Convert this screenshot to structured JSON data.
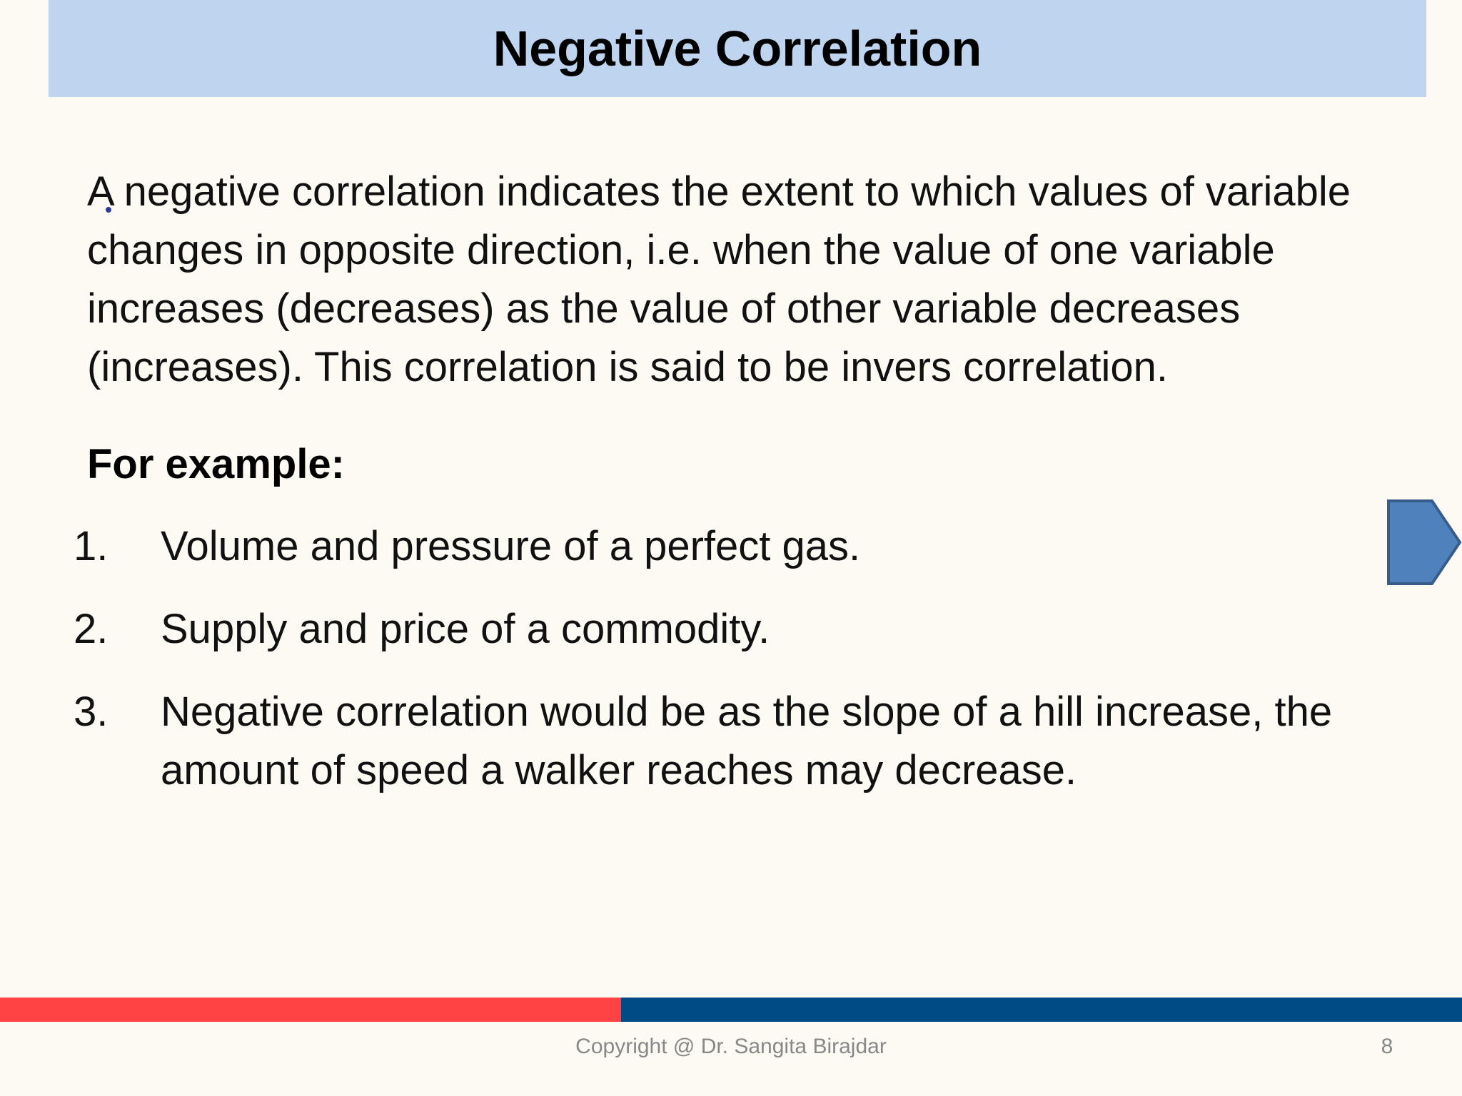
{
  "slide": {
    "title": "Negative Correlation",
    "definition": "A negative correlation indicates the extent to which values of variable changes in opposite direction, i.e. when the value of one variable increases (decreases) as the value of other variable decreases (increases). This correlation is said to be invers correlation.",
    "example_heading": "For example:",
    "examples": [
      {
        "number": "1.",
        "text": "Volume and pressure of a perfect gas."
      },
      {
        "number": "2.",
        "text": "Supply and price of a commodity."
      },
      {
        "number": "3.",
        "text": "Negative correlation would be as the slope of a hill increase, the amount of speed a walker reaches may decrease."
      }
    ],
    "footer": {
      "copyright": "Copyright @ Dr. Sangita Birajdar",
      "page_number": "8"
    }
  },
  "colors": {
    "background": "#fdf9f3",
    "title_bar": "#bfd5ef",
    "footer_red": "#ff4343",
    "footer_blue": "#004a86",
    "arrow_fill": "#4f81bd",
    "arrow_stroke": "#385d8a"
  },
  "icons": {
    "next_slide": "right-pentagon-arrow-icon"
  }
}
